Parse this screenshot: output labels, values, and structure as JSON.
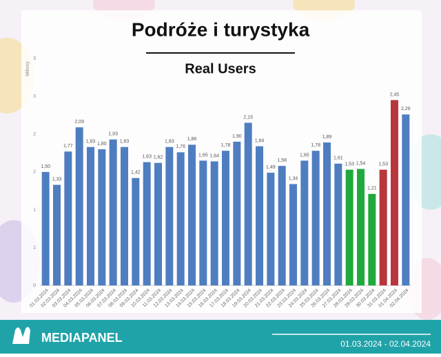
{
  "chart_data": {
    "type": "bar",
    "title": "Podróże i turystyka",
    "subtitle": "Real Users",
    "y_label": "Miliony",
    "categories": [
      "01.03.2024",
      "02.03.2024",
      "03.03.2024",
      "04.03.2024",
      "05.03.2024",
      "06.03.2024",
      "07.03.2024",
      "08.03.2024",
      "09.03.2024",
      "10.03.2024",
      "11.03.2024",
      "12.03.2024",
      "13.03.2024",
      "14.03.2024",
      "15.03.2024",
      "16.03.2024",
      "17.03.2024",
      "18.03.2024",
      "19.03.2024",
      "20.03.2024",
      "21.03.2024",
      "22.03.2024",
      "23.03.2024",
      "24.03.2024",
      "25.03.2024",
      "26.03.2024",
      "27.03.2024",
      "28.03.2024",
      "29.03.2024",
      "30.03.2024",
      "31.03.2024",
      "01.04.2024",
      "02.04.2024"
    ],
    "values": [
      1.5,
      1.33,
      1.77,
      2.09,
      1.83,
      1.8,
      1.93,
      1.83,
      1.42,
      1.63,
      1.62,
      1.83,
      1.76,
      1.86,
      1.65,
      1.64,
      1.78,
      1.9,
      2.15,
      1.84,
      1.49,
      1.58,
      1.34,
      1.65,
      1.78,
      1.89,
      1.61,
      1.53,
      1.54,
      1.21,
      1.53,
      2.45,
      2.26
    ],
    "value_labels": [
      "1,50",
      "1,33",
      "1,77",
      "2,09",
      "1,83",
      "1,80",
      "1,93",
      "1,83",
      "1,42",
      "1,63",
      "1,62",
      "1,83",
      "1,76",
      "1,86",
      "1,65",
      "1,64",
      "1,78",
      "1,90",
      "2,15",
      "1,84",
      "1,49",
      "1,58",
      "1,34",
      "1,65",
      "1,78",
      "1,89",
      "1,61",
      "1,53",
      "1,54",
      "1,21",
      "1,53",
      "2,45",
      "2,26"
    ],
    "colors": [
      "#4f7ec0",
      "#4f7ec0",
      "#4f7ec0",
      "#4f7ec0",
      "#4f7ec0",
      "#4f7ec0",
      "#4f7ec0",
      "#4f7ec0",
      "#4f7ec0",
      "#4f7ec0",
      "#4f7ec0",
      "#4f7ec0",
      "#4f7ec0",
      "#4f7ec0",
      "#4f7ec0",
      "#4f7ec0",
      "#4f7ec0",
      "#4f7ec0",
      "#4f7ec0",
      "#4f7ec0",
      "#4f7ec0",
      "#4f7ec0",
      "#4f7ec0",
      "#4f7ec0",
      "#4f7ec0",
      "#4f7ec0",
      "#4f7ec0",
      "#1faa3c",
      "#1faa3c",
      "#1faa3c",
      "#b8373c",
      "#b8373c",
      "#4f7ec0"
    ],
    "ylim": [
      0,
      3
    ],
    "yticks": [
      0,
      {
        "value": 0.5,
        "label": "1"
      },
      1,
      {
        "value": 1.5,
        "label": "2"
      },
      2,
      {
        "value": 2.5,
        "label": "3"
      },
      3
    ]
  },
  "footer": {
    "brand": "MEDIAPANEL",
    "date_range": "01.03.2024 - 02.04.2024"
  }
}
